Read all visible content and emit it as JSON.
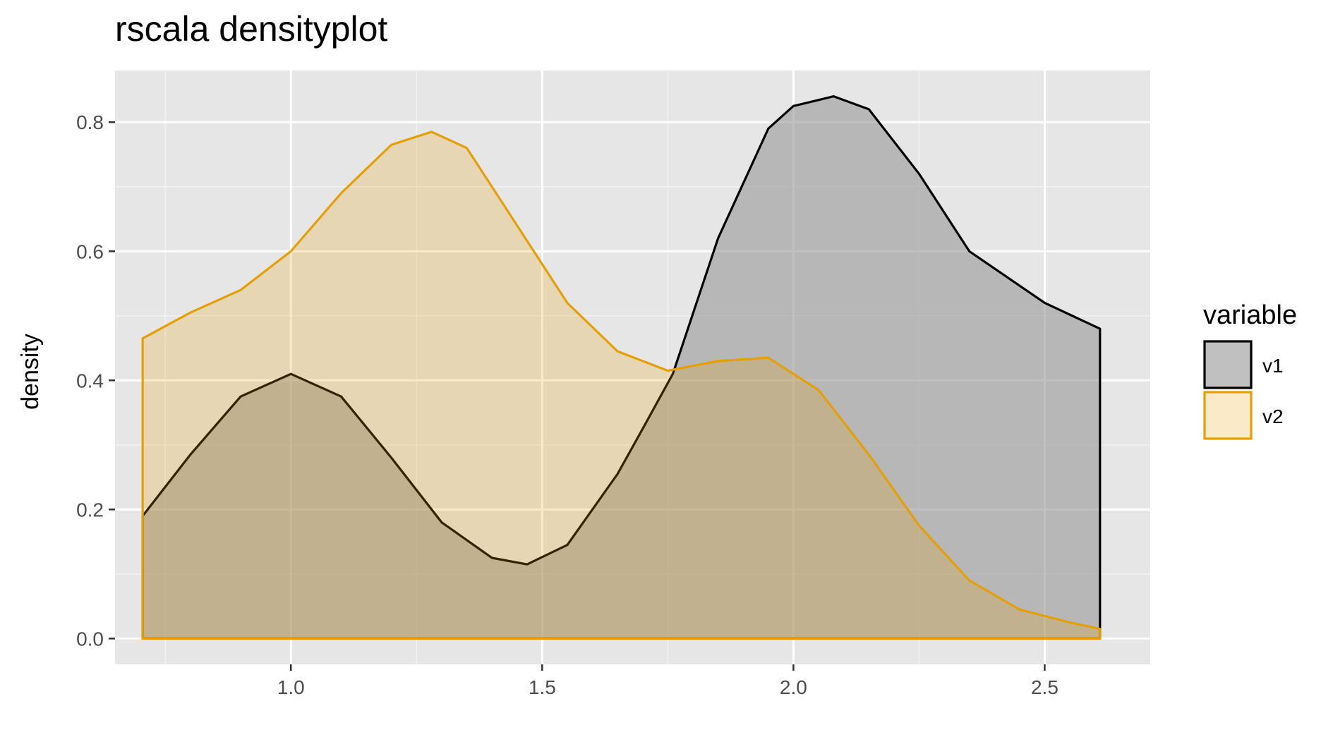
{
  "chart_data": {
    "type": "area",
    "title": "rscala densityplot",
    "xlabel": "",
    "ylabel": "density",
    "xlim": [
      0.65,
      2.71
    ],
    "ylim": [
      -0.04,
      0.88
    ],
    "x_ticks": [
      1.0,
      1.5,
      2.0,
      2.5
    ],
    "x_tick_labels": [
      "1.0",
      "1.5",
      "2.0",
      "2.5"
    ],
    "y_ticks": [
      0.0,
      0.2,
      0.4,
      0.6,
      0.8
    ],
    "y_tick_labels": [
      "0.0",
      "0.2",
      "0.4",
      "0.6",
      "0.8"
    ],
    "grid": true,
    "legend": {
      "title": "variable",
      "position": "right"
    },
    "series": [
      {
        "name": "v1",
        "line_color": "#000000",
        "fill_color": "#999999",
        "fill_opacity": 0.62,
        "x": [
          0.705,
          0.8,
          0.9,
          1.0,
          1.1,
          1.2,
          1.3,
          1.4,
          1.47,
          1.55,
          1.65,
          1.7,
          1.76,
          1.85,
          1.95,
          2.0,
          2.08,
          2.15,
          2.25,
          2.35,
          2.5,
          2.61
        ],
        "y": [
          0.19,
          0.285,
          0.375,
          0.41,
          0.375,
          0.28,
          0.18,
          0.125,
          0.115,
          0.145,
          0.255,
          0.325,
          0.41,
          0.62,
          0.79,
          0.825,
          0.84,
          0.82,
          0.72,
          0.6,
          0.52,
          0.48
        ]
      },
      {
        "name": "v2",
        "line_color": "#E69F00",
        "fill_color": "#E69F00",
        "fill_opacity": 0.22,
        "x": [
          0.705,
          0.8,
          0.9,
          1.0,
          1.1,
          1.2,
          1.28,
          1.35,
          1.45,
          1.55,
          1.65,
          1.75,
          1.85,
          1.95,
          2.05,
          2.15,
          2.25,
          2.35,
          2.45,
          2.55,
          2.61
        ],
        "y": [
          0.465,
          0.505,
          0.54,
          0.6,
          0.69,
          0.765,
          0.785,
          0.76,
          0.64,
          0.52,
          0.445,
          0.415,
          0.43,
          0.435,
          0.385,
          0.285,
          0.175,
          0.09,
          0.045,
          0.025,
          0.015
        ]
      }
    ]
  }
}
